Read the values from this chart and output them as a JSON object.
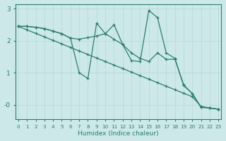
{
  "xlabel": "Humidex (Indice chaleur)",
  "background_color": "#cce8e8",
  "line_color": "#2e7d6e",
  "xlim": [
    -0.3,
    23.3
  ],
  "ylim": [
    -0.45,
    3.15
  ],
  "yticks": [
    3,
    2,
    1,
    0
  ],
  "ytick_labels": [
    "3",
    "2",
    "1",
    "-0"
  ],
  "xticks": [
    0,
    1,
    2,
    3,
    4,
    5,
    6,
    7,
    8,
    9,
    10,
    11,
    12,
    13,
    14,
    15,
    16,
    17,
    18,
    19,
    20,
    21,
    22,
    23
  ],
  "series": [
    {
      "x": [
        0,
        1,
        2,
        3,
        4,
        5,
        6,
        7,
        8,
        9,
        10,
        11,
        12,
        13,
        14,
        15,
        16,
        17,
        18,
        19,
        20,
        21,
        22,
        23
      ],
      "y": [
        2.45,
        2.45,
        2.42,
        2.38,
        2.3,
        2.22,
        2.08,
        1.0,
        0.82,
        2.55,
        2.22,
        2.5,
        1.88,
        1.38,
        1.35,
        2.95,
        2.72,
        1.62,
        1.45,
        0.6,
        0.35,
        -0.08,
        -0.1,
        -0.14
      ]
    },
    {
      "x": [
        0,
        1,
        2,
        3,
        4,
        5,
        6,
        7,
        8,
        9,
        10,
        11,
        12,
        13,
        14,
        15,
        16,
        17,
        18,
        19,
        20,
        21,
        22,
        23
      ],
      "y": [
        2.45,
        2.45,
        2.42,
        2.38,
        2.3,
        2.22,
        2.08,
        2.05,
        2.1,
        2.15,
        2.22,
        2.05,
        1.88,
        1.62,
        1.45,
        1.35,
        1.62,
        1.42,
        1.42,
        0.62,
        0.35,
        -0.08,
        -0.1,
        -0.14
      ]
    },
    {
      "x": [
        0,
        1,
        2,
        3,
        4,
        5,
        6,
        7,
        8,
        9,
        10,
        11,
        12,
        13,
        14,
        15,
        16,
        17,
        18,
        19,
        20,
        21,
        22,
        23
      ],
      "y": [
        2.45,
        2.34,
        2.23,
        2.12,
        2.01,
        1.9,
        1.79,
        1.68,
        1.57,
        1.46,
        1.35,
        1.24,
        1.13,
        1.02,
        0.91,
        0.8,
        0.69,
        0.58,
        0.47,
        0.36,
        0.25,
        -0.05,
        -0.1,
        -0.14
      ]
    }
  ]
}
